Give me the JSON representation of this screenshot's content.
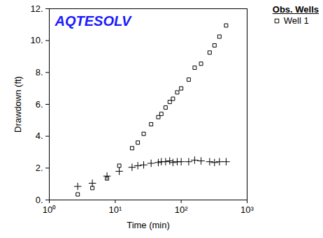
{
  "chart_data": {
    "type": "scatter",
    "annotation": "AQTESOLV",
    "x_label": "Time (min)",
    "y_label": "Drawdown (ft)",
    "legend_title": "Obs. Wells",
    "legend": "top-right",
    "log": "x",
    "xlim": [
      1,
      1000
    ],
    "xticks": [
      {
        "value": 1,
        "label": "10⁰"
      },
      {
        "value": 10,
        "label": "10¹"
      },
      {
        "value": 100,
        "label": "10²"
      },
      {
        "value": 1000,
        "label": "10³"
      }
    ],
    "ylim": [
      0,
      12
    ],
    "yticks": [
      {
        "value": 0,
        "label": "0."
      },
      {
        "value": 2,
        "label": "2."
      },
      {
        "value": 4,
        "label": "4."
      },
      {
        "value": 6,
        "label": "6."
      },
      {
        "value": 8,
        "label": "8."
      },
      {
        "value": 10,
        "label": "10."
      },
      {
        "value": 12,
        "label": "12."
      }
    ],
    "series": [
      {
        "name": "Well 1",
        "color": "#000000",
        "marker": "square",
        "x": [
          2.7,
          4.5,
          7.5,
          11.5,
          18,
          22,
          27,
          35,
          45,
          50,
          58,
          67,
          75,
          87,
          100,
          130,
          160,
          200,
          270,
          320,
          380,
          480
        ],
        "values": [
          0.35,
          0.75,
          1.35,
          2.15,
          3.25,
          3.6,
          4.15,
          4.75,
          5.2,
          5.4,
          5.8,
          6.15,
          6.35,
          6.75,
          7.0,
          7.55,
          8.3,
          8.55,
          9.25,
          9.7,
          10.25,
          10.95
        ]
      },
      {
        "color": "#000000",
        "marker": "plus",
        "x": [
          2.7,
          4.5,
          7.5,
          11.5,
          18,
          22,
          27,
          35,
          45,
          50,
          58,
          67,
          75,
          87,
          100,
          130,
          160,
          200,
          270,
          320,
          380,
          480
        ],
        "values": [
          0.85,
          1.05,
          1.5,
          1.8,
          2.05,
          2.15,
          2.2,
          2.3,
          2.35,
          2.4,
          2.4,
          2.45,
          2.35,
          2.4,
          2.4,
          2.4,
          2.5,
          2.45,
          2.4,
          2.35,
          2.4,
          2.4
        ]
      }
    ]
  }
}
